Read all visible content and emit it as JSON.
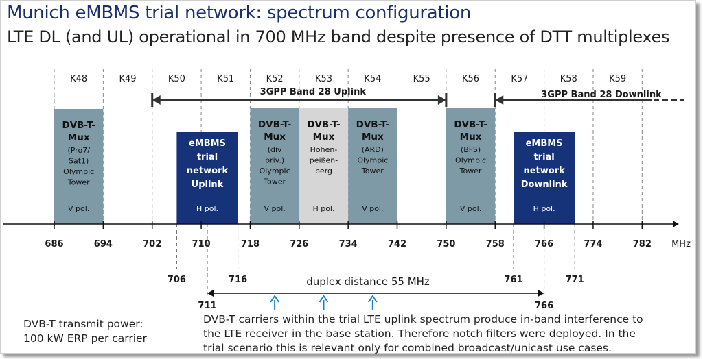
{
  "title": "Munich eMBMS trial network: spectrum configuration",
  "subtitle": "LTE DL (and UL) operational in 700 MHz band despite presence of DTT multiplexes",
  "channels": [
    "K48",
    "K49",
    "K50",
    "K51",
    "K52",
    "K53",
    "K54",
    "K55",
    "K56",
    "K57",
    "K58",
    "K59"
  ],
  "freq_ticks": [
    "686",
    "694",
    "702",
    "710",
    "718",
    "726",
    "734",
    "742",
    "750",
    "758",
    "766",
    "774",
    "782"
  ],
  "unit": "MHz",
  "secondary_ticks": [
    "706",
    "716",
    "761",
    "771"
  ],
  "duplex_ticks": [
    "711",
    "766"
  ],
  "band_uplink_label": "3GPP Band 28 Uplink",
  "band_downlink_label": "3GPP Band 28 Downlink",
  "duplex_label": "duplex distance 55 MHz",
  "blocks": [
    {
      "id": "dvb-pro7",
      "lines": [
        "DVB-T-",
        "Mux"
      ],
      "sub": [
        "(Pro7/",
        "Sat1)",
        "Olympic",
        "Tower"
      ],
      "pol": "V pol.",
      "color": "#7e9aa6"
    },
    {
      "id": "embms-ul",
      "lines": [
        "eMBMS",
        "trial",
        "network",
        "Uplink"
      ],
      "sub": [],
      "pol": "H pol.",
      "color": "#16337a"
    },
    {
      "id": "dvb-div",
      "lines": [
        "DVB-T-",
        "Mux"
      ],
      "sub": [
        "(div",
        "priv.)",
        "Olympic",
        "Tower"
      ],
      "pol": "V pol.",
      "color": "#7e9aa6"
    },
    {
      "id": "dvb-hohen",
      "lines": [
        "DVB-T-",
        "Mux"
      ],
      "sub": [
        "Hohen-",
        "peißen-",
        "berg"
      ],
      "pol": "H pol.",
      "color": "#d6d6d6"
    },
    {
      "id": "dvb-ard",
      "lines": [
        "DVB-T-",
        "Mux"
      ],
      "sub": [
        "(ARD)",
        "Olympic",
        "Tower"
      ],
      "pol": "V pol.",
      "color": "#7e9aa6"
    },
    {
      "id": "dvb-bfs",
      "lines": [
        "DVB-T-",
        "Mux"
      ],
      "sub": [
        "(BFS)",
        "Olympic",
        "Tower"
      ],
      "pol": "V pol.",
      "color": "#7e9aa6"
    },
    {
      "id": "embms-dl",
      "lines": [
        "eMBMS",
        "trial",
        "network",
        "Downlink"
      ],
      "sub": [],
      "pol": "H pol.",
      "color": "#16337a"
    }
  ],
  "note_power": [
    "DVB-T transmit power:",
    "100 kW ERP per carrier"
  ],
  "note_interference": [
    "DVB-T carriers within the trial LTE uplink spectrum produce in-band interference to",
    "the LTE receiver in the base station. Therefore notch filters were deployed.  In  the",
    "trial scenario  this is relevant only for combined broadcast/unicast use cases."
  ]
}
